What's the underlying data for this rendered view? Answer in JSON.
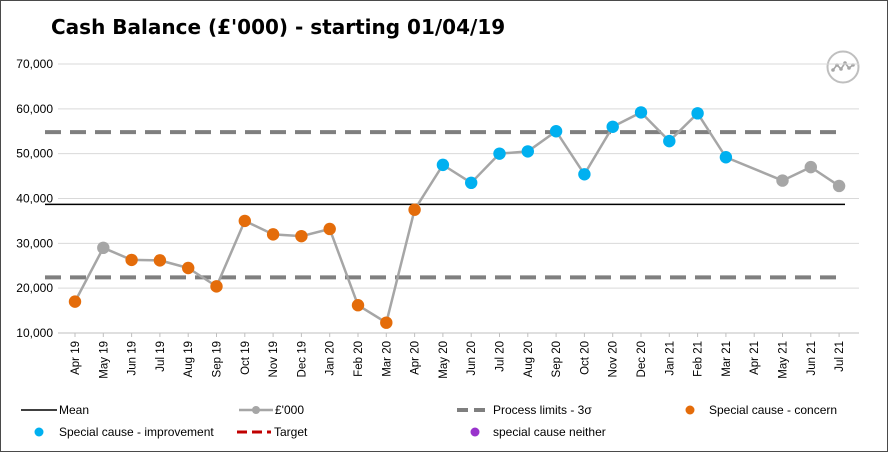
{
  "chart_data": {
    "type": "line",
    "title": "Cash Balance (£'000) - starting 01/04/19",
    "categories": [
      "Apr 19",
      "May 19",
      "Jun 19",
      "Jul 19",
      "Aug 19",
      "Sep 19",
      "Oct 19",
      "Nov 19",
      "Dec 19",
      "Jan 20",
      "Feb 20",
      "Mar 20",
      "Apr 20",
      "May 20",
      "Jun 20",
      "Jul 20",
      "Aug 20",
      "Sep 20",
      "Oct 20",
      "Nov 20",
      "Dec 20",
      "Jan 21",
      "Feb 21",
      "Mar 21",
      "Apr 21",
      "May 21",
      "Jun 21",
      "Jul 21"
    ],
    "values": [
      17000,
      29000,
      26300,
      26200,
      24500,
      20400,
      35000,
      32000,
      31600,
      33200,
      16200,
      12300,
      37500,
      47500,
      43500,
      50000,
      50500,
      55000,
      45400,
      56000,
      59200,
      52800,
      59000,
      49200,
      null,
      44000,
      47000,
      42800
    ],
    "point_status": [
      "concern",
      "neutral",
      "concern",
      "concern",
      "concern",
      "concern",
      "concern",
      "concern",
      "concern",
      "concern",
      "concern",
      "concern",
      "concern",
      "improvement",
      "improvement",
      "improvement",
      "improvement",
      "improvement",
      "improvement",
      "improvement",
      "improvement",
      "improvement",
      "improvement",
      "improvement",
      "neutral",
      "neutral",
      "neutral",
      "neutral"
    ],
    "mean": 38700,
    "upper_process_limit": 54800,
    "lower_process_limit": 22400,
    "ylim": [
      10000,
      70000
    ],
    "y_ticks": [
      "10,000",
      "20,000",
      "30,000",
      "40,000",
      "50,000",
      "60,000",
      "70,000"
    ],
    "grid": true,
    "legend_position": "bottom",
    "legend": {
      "mean": "Mean",
      "series": "£'000",
      "process_limits": "Process limits - 3σ",
      "concern": "Special cause - concern",
      "improvement": "Special cause  - improvement",
      "target": "Target",
      "neither": "special cause neither"
    },
    "colors": {
      "line": "#a6a6a6",
      "neutral_marker": "#a6a6a6",
      "concern": "#e46c0a",
      "improvement": "#00b0f0",
      "neither": "#9933cc",
      "mean": "#000000",
      "process_limit": "#7f7f7f",
      "target": "#c00000",
      "grid": "#d9d9d9"
    },
    "icon": "spc-variation-icon"
  }
}
